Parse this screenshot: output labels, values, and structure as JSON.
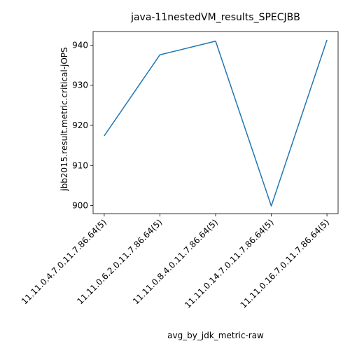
{
  "chart_data": {
    "type": "line",
    "title": "java-11nestedVM_results_SPECJBB",
    "xlabel": "avg_by_jdk_metric-raw",
    "ylabel": "jbb2015.result.metric.critical-jOPS",
    "categories": [
      "11.11.0.4.7.0.11.7.86.64(5)",
      "11.11.0.6.2.0.11.7.86.64(5)",
      "11.11.0.8.4.0.11.7.86.64(5)",
      "11.11.0.14.7.0.11.7.86.64(5)",
      "11.11.0.16.7.0.11.7.86.64(5)"
    ],
    "series": [
      {
        "values": [
          917.4,
          937.6,
          941.0,
          899.9,
          941.3
        ],
        "color": "#1f77b4"
      }
    ],
    "yticks": [
      900,
      910,
      920,
      930,
      940
    ],
    "ylim": [
      898.0,
      943.4
    ],
    "grid": false,
    "legend": "none"
  }
}
